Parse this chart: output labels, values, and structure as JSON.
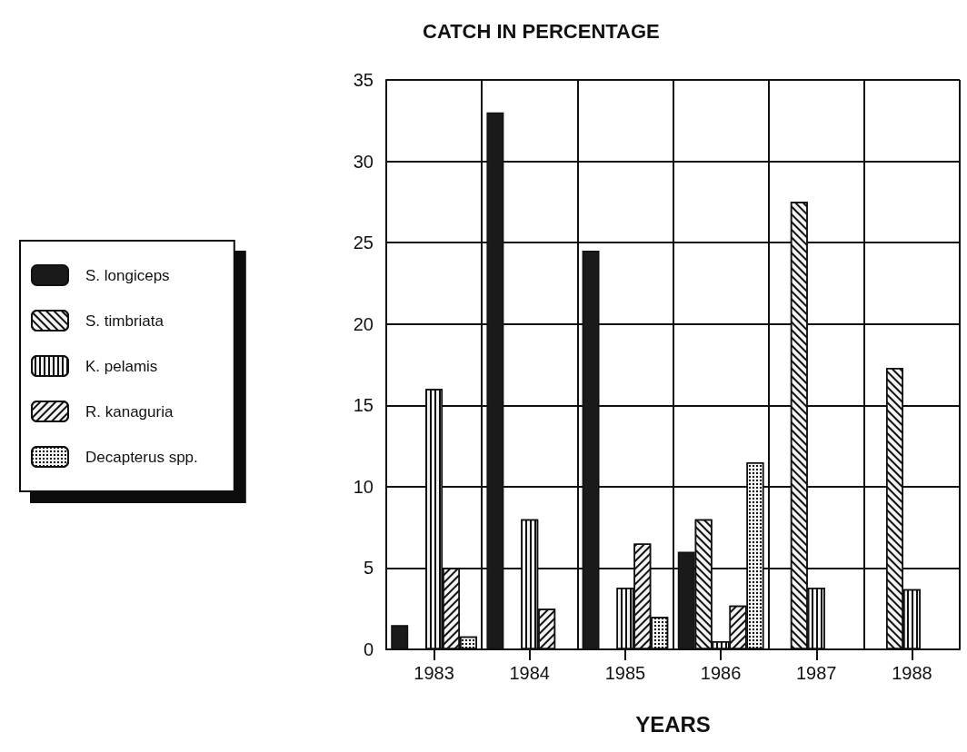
{
  "chart_data": {
    "type": "bar",
    "title": "CATCH IN PERCENTAGE",
    "xlabel": "YEARS",
    "categories": [
      "1983",
      "1984",
      "1985",
      "1986",
      "1987",
      "1988"
    ],
    "series": [
      {
        "name": "S. longiceps",
        "color": "#1a1a1a",
        "values": [
          1.5,
          33,
          24.5,
          6,
          null,
          null
        ]
      },
      {
        "name": "S. timbriata",
        "color": "#f2f2f2",
        "values": [
          null,
          null,
          null,
          8,
          27.5,
          17.3
        ]
      },
      {
        "name": "K. pelamis",
        "color": "#f2f2f2",
        "values": [
          16,
          8,
          3.8,
          0.5,
          3.8,
          3.7
        ]
      },
      {
        "name": "R. kanaguria",
        "color": "#f2f2f2",
        "values": [
          5,
          2.5,
          6.5,
          2.7,
          null,
          null
        ]
      },
      {
        "name": "Decapterus spp.",
        "color": "#f2f2f2",
        "values": [
          0.8,
          null,
          2,
          11.5,
          null,
          null
        ]
      }
    ],
    "ylim": [
      0,
      35
    ],
    "yticks": [
      0,
      5,
      10,
      15,
      20,
      25,
      30,
      35
    ],
    "grid": true,
    "legend": "left"
  }
}
